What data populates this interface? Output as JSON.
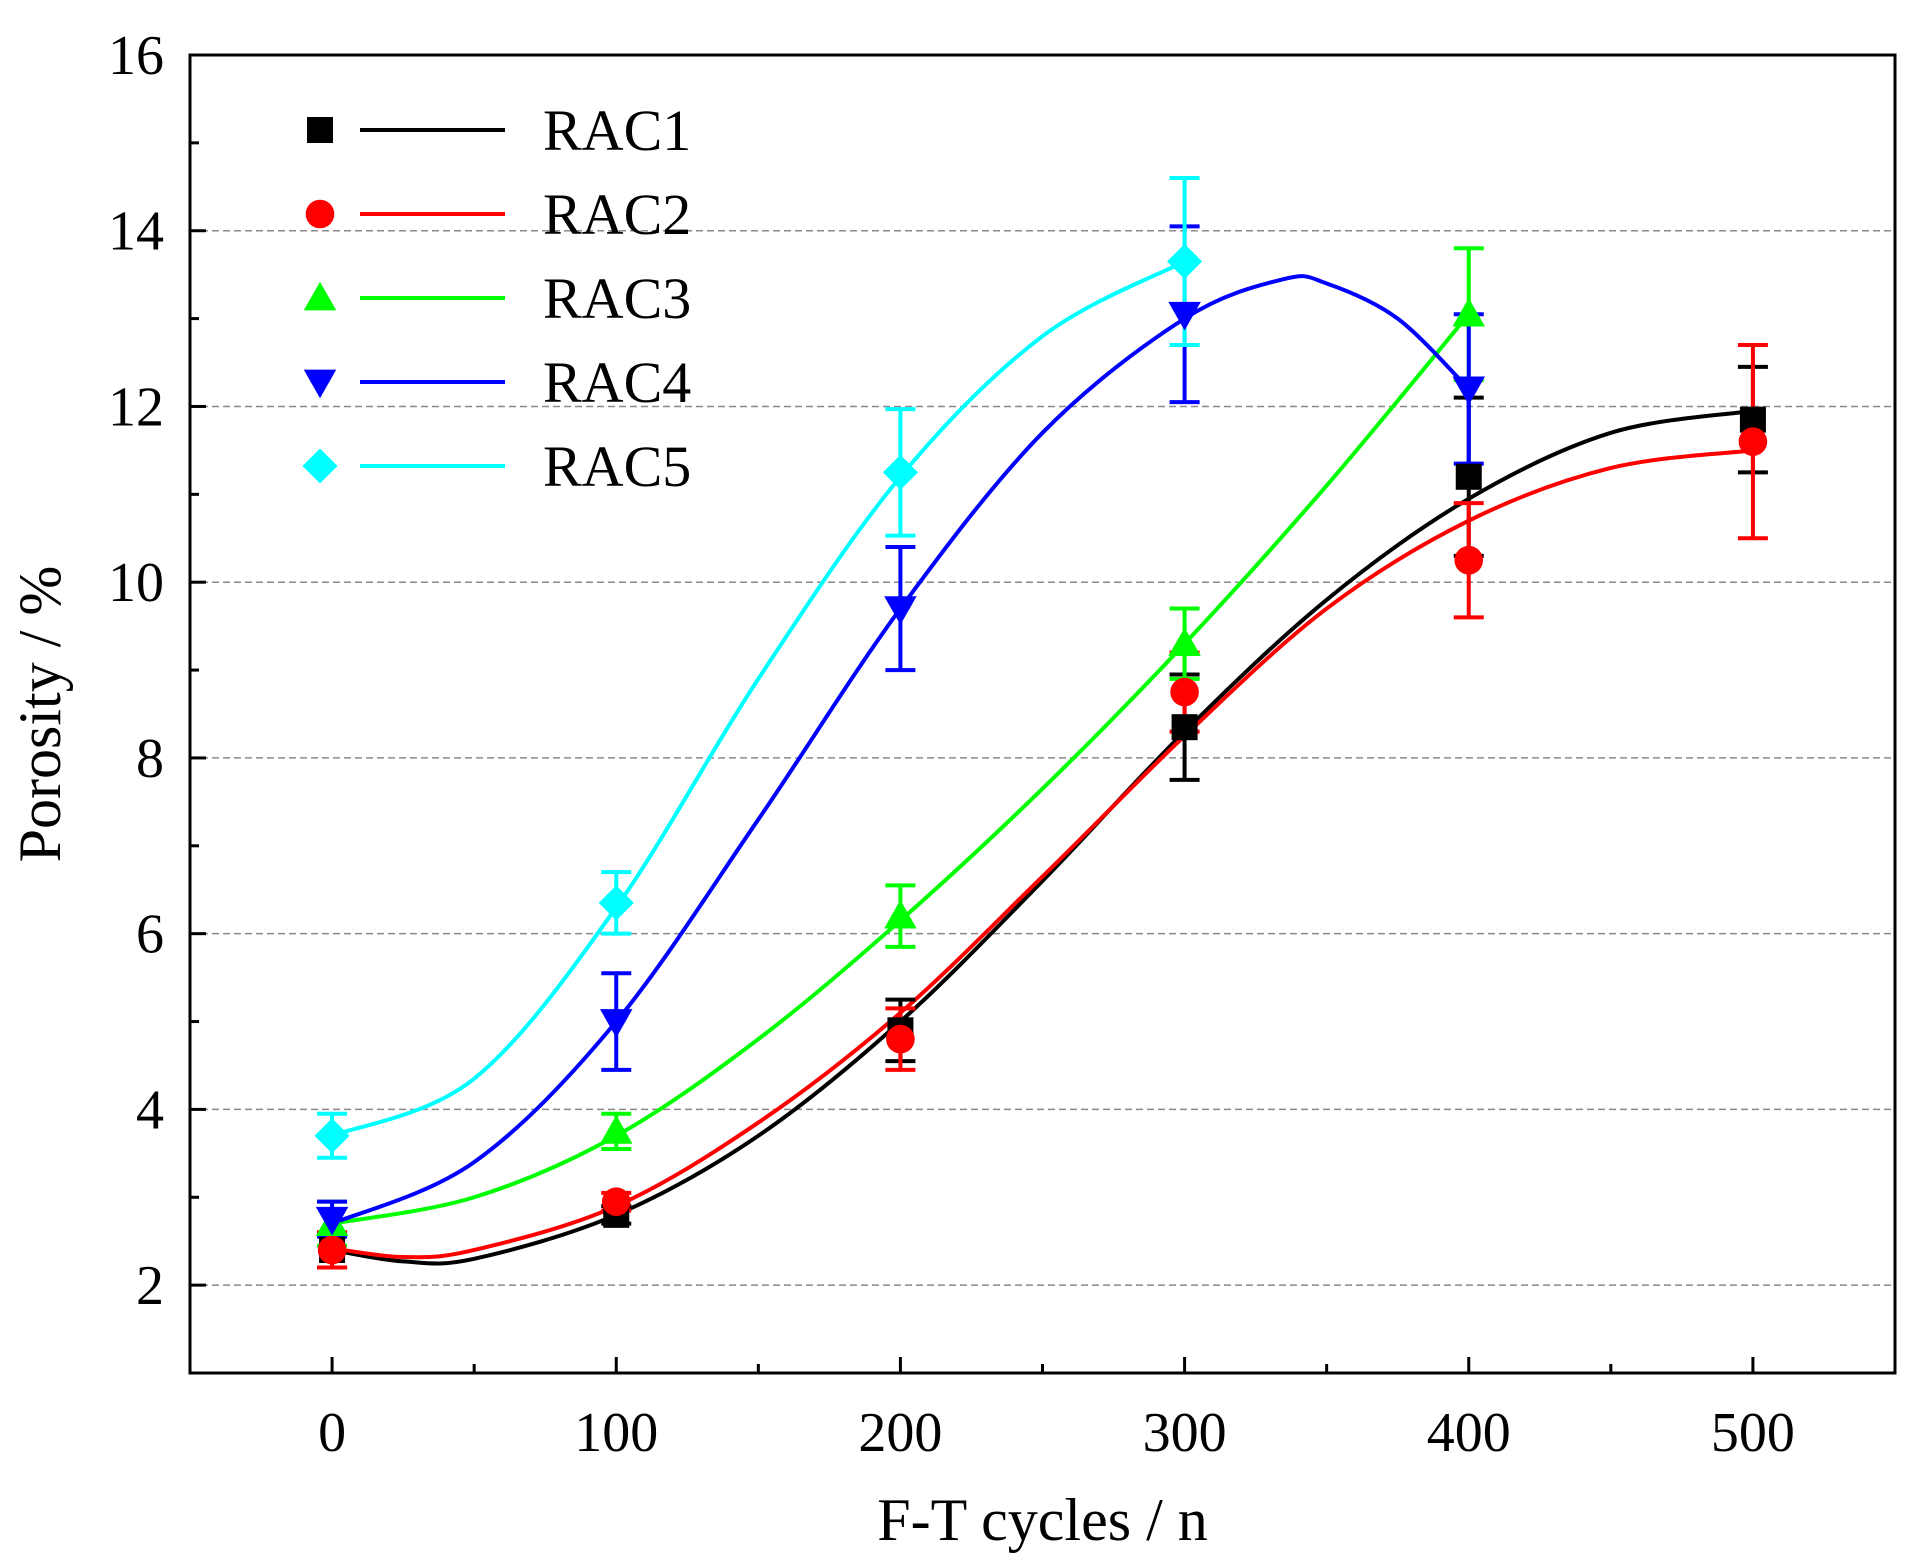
{
  "chart_data": {
    "type": "line",
    "title": "",
    "xlabel": "F-T cycles / n",
    "ylabel": "Porosity / %",
    "xlim": [
      -50,
      550
    ],
    "ylim": [
      1,
      16
    ],
    "xticks": [
      0,
      100,
      200,
      300,
      400,
      500
    ],
    "xtick_labels": [
      "0",
      "100",
      "200",
      "300",
      "400",
      "500"
    ],
    "yticks": [
      2,
      4,
      6,
      8,
      10,
      12,
      14,
      16
    ],
    "ytick_labels": [
      "2",
      "4",
      "6",
      "8",
      "10",
      "12",
      "14",
      "16"
    ],
    "grid": "horizontal dashed",
    "legend_position": "top-left",
    "series": [
      {
        "name": "RAC1",
        "color": "#000000",
        "marker": "square",
        "x": [
          0,
          100,
          200,
          300,
          400,
          500
        ],
        "y": [
          2.4,
          2.8,
          4.9,
          8.35,
          11.2,
          11.85
        ],
        "err": [
          0.2,
          0.1,
          0.35,
          0.6,
          0.9,
          0.6
        ],
        "fit": [
          [
            0,
            2.4
          ],
          [
            25,
            2.27
          ],
          [
            50,
            2.3
          ],
          [
            100,
            2.8
          ],
          [
            150,
            3.7
          ],
          [
            200,
            5.0
          ],
          [
            250,
            6.6
          ],
          [
            300,
            8.3
          ],
          [
            350,
            9.8
          ],
          [
            400,
            10.95
          ],
          [
            450,
            11.7
          ],
          [
            500,
            11.95
          ]
        ]
      },
      {
        "name": "RAC2",
        "color": "#ff0000",
        "marker": "circle",
        "x": [
          0,
          100,
          200,
          300,
          400,
          500
        ],
        "y": [
          2.4,
          2.95,
          4.8,
          8.75,
          10.25,
          11.6
        ],
        "err": [
          0.2,
          0.1,
          0.35,
          0.45,
          0.65,
          1.1
        ],
        "fit": [
          [
            0,
            2.42
          ],
          [
            25,
            2.32
          ],
          [
            50,
            2.4
          ],
          [
            100,
            2.9
          ],
          [
            150,
            3.85
          ],
          [
            200,
            5.1
          ],
          [
            250,
            6.65
          ],
          [
            300,
            8.25
          ],
          [
            350,
            9.7
          ],
          [
            400,
            10.7
          ],
          [
            450,
            11.3
          ],
          [
            500,
            11.5
          ]
        ]
      },
      {
        "name": "RAC3",
        "color": "#00ff00",
        "marker": "triangle-up",
        "x": [
          0,
          100,
          200,
          300,
          400
        ],
        "y": [
          2.7,
          3.75,
          6.2,
          9.3,
          13.05
        ],
        "err": [
          0.25,
          0.2,
          0.35,
          0.4,
          0.75
        ],
        "fit": [
          [
            0,
            2.7
          ],
          [
            50,
            3.0
          ],
          [
            100,
            3.7
          ],
          [
            150,
            4.8
          ],
          [
            200,
            6.15
          ],
          [
            250,
            7.65
          ],
          [
            300,
            9.3
          ],
          [
            350,
            11.1
          ],
          [
            400,
            13.05
          ]
        ]
      },
      {
        "name": "RAC4",
        "color": "#0000ff",
        "marker": "triangle-down",
        "x": [
          0,
          100,
          200,
          300,
          400
        ],
        "y": [
          2.75,
          5.0,
          9.7,
          13.05,
          12.2
        ],
        "err": [
          0.2,
          0.55,
          0.7,
          1.0,
          0.85
        ],
        "fit": [
          [
            0,
            2.7
          ],
          [
            50,
            3.4
          ],
          [
            100,
            5.0
          ],
          [
            150,
            7.3
          ],
          [
            200,
            9.7
          ],
          [
            250,
            11.7
          ],
          [
            300,
            13.0
          ],
          [
            335,
            13.45
          ],
          [
            350,
            13.4
          ],
          [
            375,
            13.0
          ],
          [
            400,
            12.2
          ]
        ]
      },
      {
        "name": "RAC5",
        "color": "#00ffff",
        "marker": "diamond",
        "x": [
          0,
          100,
          200,
          300
        ],
        "y": [
          3.7,
          6.35,
          11.25,
          13.65
        ],
        "err": [
          0.25,
          0.35,
          0.72,
          0.95
        ],
        "fit": [
          [
            0,
            3.7
          ],
          [
            50,
            4.35
          ],
          [
            100,
            6.3
          ],
          [
            150,
            8.9
          ],
          [
            200,
            11.2
          ],
          [
            250,
            12.8
          ],
          [
            300,
            13.65
          ]
        ]
      }
    ]
  }
}
